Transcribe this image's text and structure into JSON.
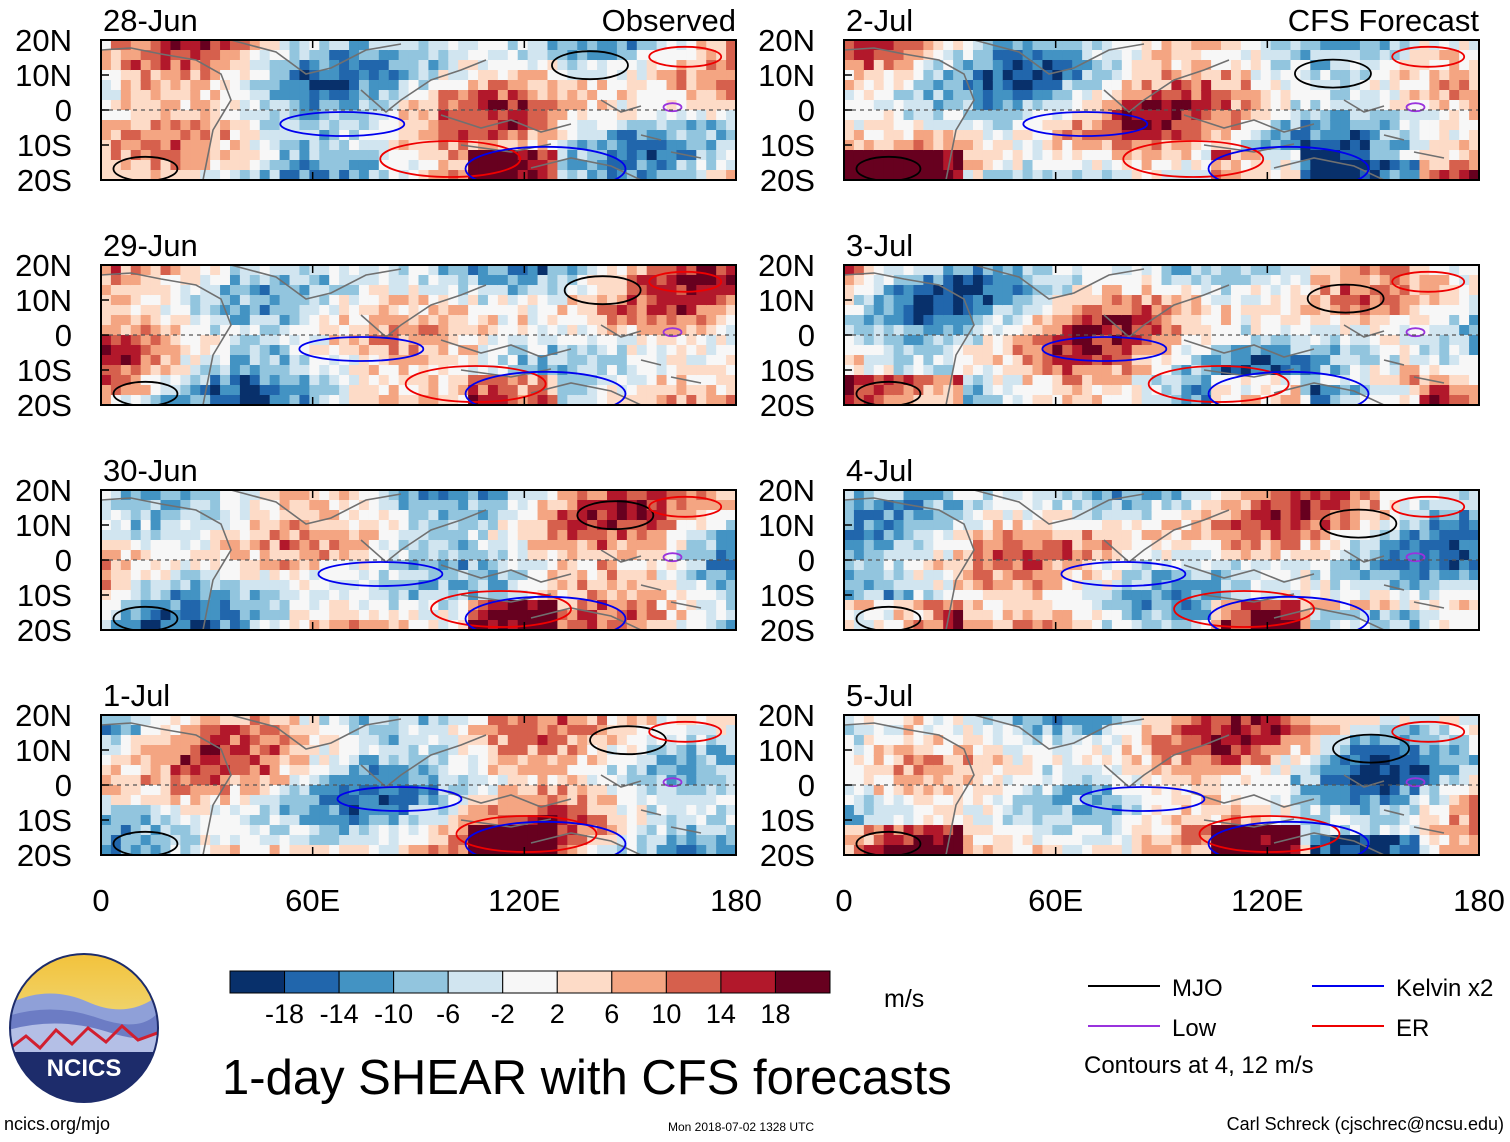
{
  "chart_data": {
    "type": "heatmap",
    "title": "1-day SHEAR with CFS forecasts",
    "units": "m/s",
    "x_axis": {
      "range": [
        0,
        180
      ],
      "ticks": [
        0,
        60,
        120,
        180
      ],
      "tick_labels": [
        "0",
        "60E",
        "120E",
        "180"
      ]
    },
    "y_axis": {
      "range": [
        -20,
        20
      ],
      "ticks": [
        20,
        10,
        0,
        -10,
        -20
      ],
      "tick_labels": [
        "20N",
        "10N",
        "0",
        "10S",
        "20S"
      ]
    },
    "columns": [
      {
        "header": "Observed",
        "panels": [
          {
            "date": "28-Jun"
          },
          {
            "date": "29-Jun"
          },
          {
            "date": "30-Jun"
          },
          {
            "date": "1-Jul"
          }
        ]
      },
      {
        "header": "CFS Forecast",
        "panels": [
          {
            "date": "2-Jul"
          },
          {
            "date": "3-Jul"
          },
          {
            "date": "4-Jul"
          },
          {
            "date": "5-Jul"
          }
        ]
      }
    ],
    "colorbar": {
      "colors": [
        "#08306b",
        "#2166ac",
        "#4393c3",
        "#92c5de",
        "#d1e5f0",
        "#f7f7f7",
        "#fddbc7",
        "#f4a582",
        "#d6604d",
        "#b2182b",
        "#67001f"
      ],
      "labels": [
        "-18",
        "-14",
        "-10",
        "-6",
        "-2",
        "2",
        "6",
        "10",
        "14",
        "18"
      ]
    },
    "legend": [
      {
        "name": "MJO",
        "color": "#000000"
      },
      {
        "name": "Kelvin x2",
        "color": "#0000ee"
      },
      {
        "name": "Low",
        "color": "#9933dd"
      },
      {
        "name": "ER",
        "color": "#ee0000"
      }
    ],
    "contour_note": "Contours at 4, 12 m/s"
  },
  "footer": {
    "logo_text": "NCICS",
    "url": "ncics.org/mjo",
    "timestamp": "Mon 2018-07-02 1328 UTC",
    "credit": "Carl Schreck (cjschrec@ncsu.edu)"
  }
}
